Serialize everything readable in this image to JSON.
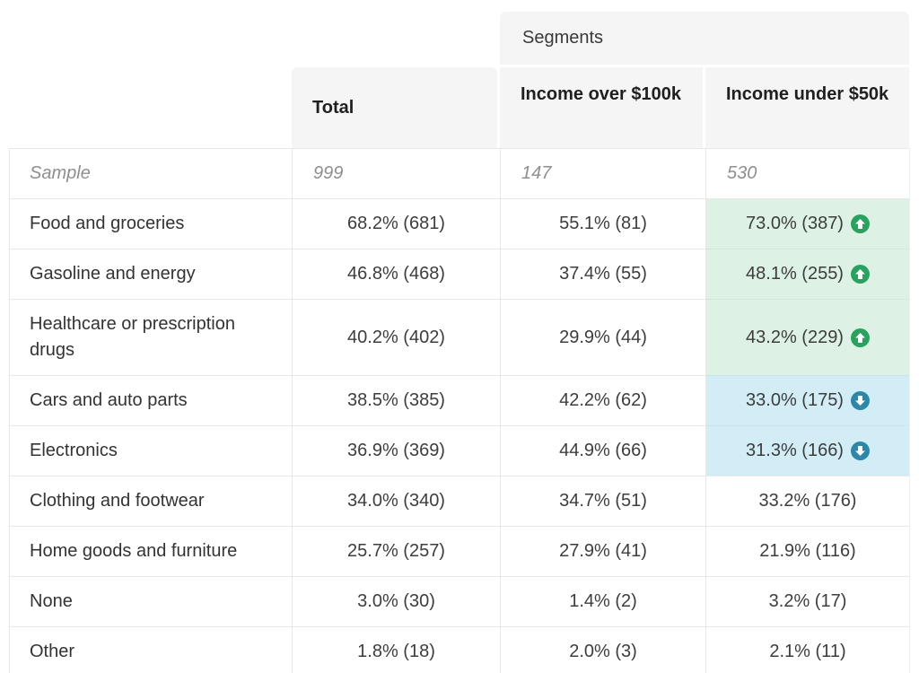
{
  "table": {
    "segments_label": "Segments",
    "columns": [
      {
        "key": "total",
        "label": "Total"
      },
      {
        "key": "over",
        "label": "Income over $100k"
      },
      {
        "key": "under",
        "label": "Income under $50k"
      }
    ],
    "sample_row": {
      "label": "Sample",
      "total": "999",
      "over": "147",
      "under": "530"
    },
    "rows": [
      {
        "label": "Food and groceries",
        "total": "68.2% (681)",
        "over": "55.1% (81)",
        "under": "73.0% (387)",
        "under_highlight": "up"
      },
      {
        "label": "Gasoline and energy",
        "total": "46.8% (468)",
        "over": "37.4% (55)",
        "under": "48.1% (255)",
        "under_highlight": "up"
      },
      {
        "label": "Healthcare or prescription drugs",
        "total": "40.2% (402)",
        "over": "29.9% (44)",
        "under": "43.2% (229)",
        "under_highlight": "up"
      },
      {
        "label": "Cars and auto parts",
        "total": "38.5% (385)",
        "over": "42.2% (62)",
        "under": "33.0% (175)",
        "under_highlight": "down"
      },
      {
        "label": "Electronics",
        "total": "36.9% (369)",
        "over": "44.9% (66)",
        "under": "31.3% (166)",
        "under_highlight": "down"
      },
      {
        "label": "Clothing and footwear",
        "total": "34.0% (340)",
        "over": "34.7% (51)",
        "under": "33.2% (176)",
        "under_highlight": null
      },
      {
        "label": "Home goods and furniture",
        "total": "25.7% (257)",
        "over": "27.9% (41)",
        "under": "21.9% (116)",
        "under_highlight": null
      },
      {
        "label": "None",
        "total": "3.0% (30)",
        "over": "1.4% (2)",
        "under": "3.2% (17)",
        "under_highlight": null
      },
      {
        "label": "Other",
        "total": "1.8% (18)",
        "over": "2.0% (3)",
        "under": "2.1% (11)",
        "under_highlight": null
      }
    ],
    "colors": {
      "header_bg": "#f5f5f5",
      "border_line": "#e8e8e8",
      "highlight_up_bg": "#ddf1e4",
      "highlight_up_icon": "#2aa15f",
      "highlight_down_bg": "#d3edf6",
      "highlight_down_icon": "#2e87a7",
      "highlight_separator_dotted": "#edc9cd"
    }
  }
}
